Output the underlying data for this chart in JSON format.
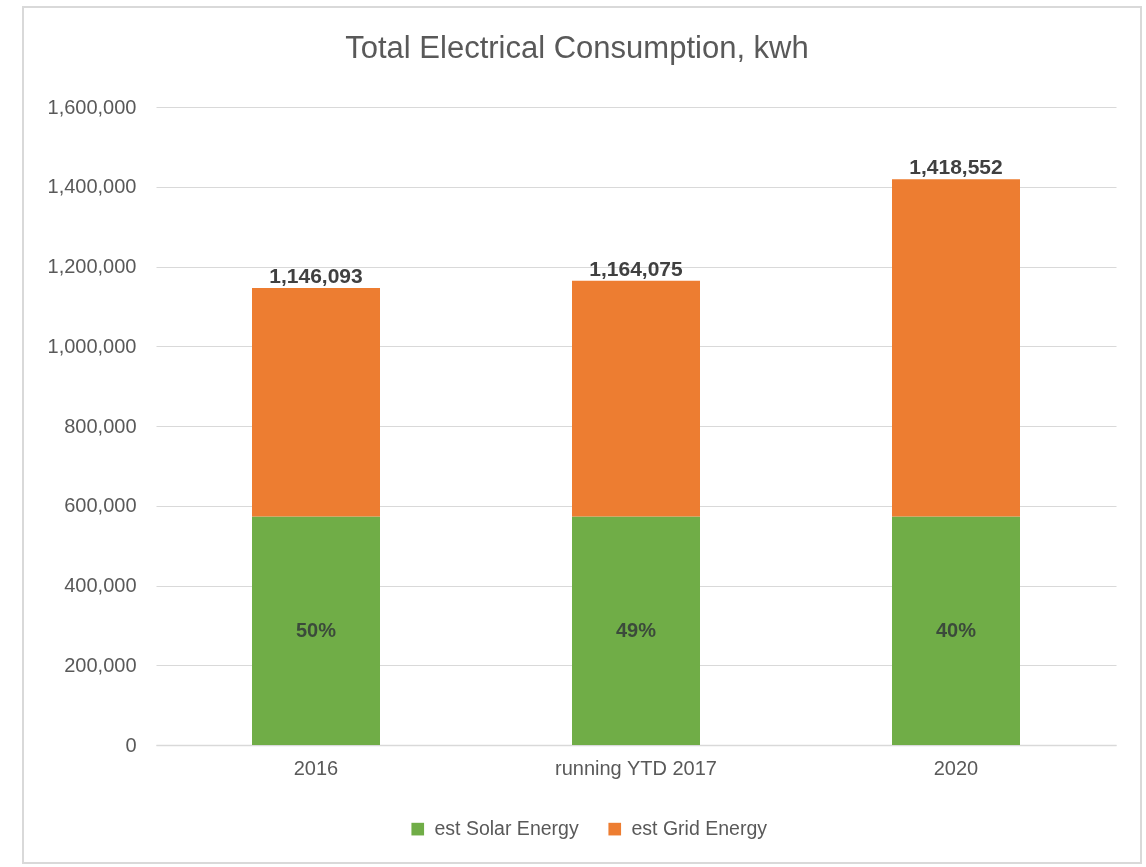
{
  "chart_data": {
    "type": "bar",
    "title": "Total Electrical Consumption, kwh",
    "categories": [
      "2016",
      "running YTD 2017",
      "2020"
    ],
    "series": [
      {
        "name": "est Solar Energy",
        "color": "#70ad47",
        "values": [
          573000,
          573000,
          573000
        ]
      },
      {
        "name": "est Grid Energy",
        "color": "#ed7d31",
        "values": [
          573093,
          591075,
          845552
        ]
      }
    ],
    "stacked": true,
    "totals": [
      "1,146,093",
      "1,164,075",
      "1,418,552"
    ],
    "annotations": [
      "50%",
      "49%",
      "40%"
    ],
    "ylim": [
      0,
      1600000
    ],
    "yticks": [
      0,
      {
        "value": 200000,
        "label": "200,000"
      },
      {
        "value": 400000,
        "label": "400,000"
      },
      {
        "value": 600000,
        "label": "600,000"
      },
      {
        "value": 800000,
        "label": "800,000"
      },
      {
        "value": 1000000,
        "label": "1,000,000"
      },
      {
        "value": 1200000,
        "label": "1,200,000"
      },
      {
        "value": 1400000,
        "label": "1,400,000"
      },
      {
        "value": 1600000,
        "label": "1,600,000"
      }
    ],
    "grid": "y",
    "legend": "bottom"
  }
}
